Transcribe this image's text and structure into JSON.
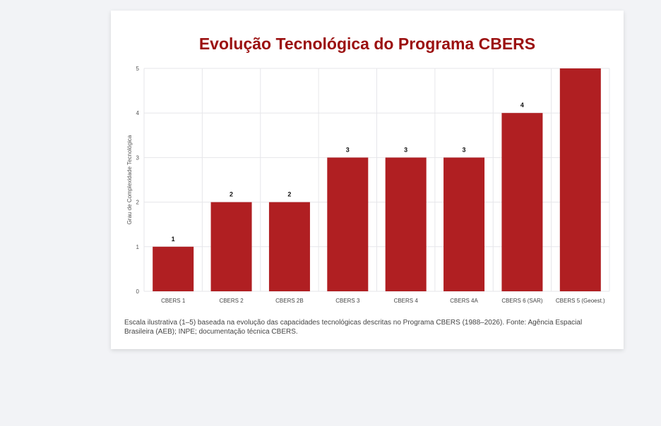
{
  "title": "Evolução Tecnológica do Programa CBERS",
  "caption": "Escala ilustrativa (1–5) baseada na evolução das capacidades tecnológicas descritas no Programa CBERS (1988–2026). Fonte: Agência Espacial Brasileira (AEB); INPE; documentação técnica CBERS.",
  "colors": {
    "bar": "#b01f22",
    "title": "#9b1010",
    "grid": "#e6e6ea"
  },
  "chart_data": {
    "type": "bar",
    "title": "Evolução Tecnológica do Programa CBERS",
    "xlabel": "",
    "ylabel": "Grau de Complexidade Tecnológica",
    "categories": [
      "CBERS 1",
      "CBERS 2",
      "CBERS 2B",
      "CBERS 3",
      "CBERS 4",
      "CBERS 4A",
      "CBERS 6 (SAR)",
      "CBERS 5 (Geoest.)"
    ],
    "values": [
      1,
      2,
      2,
      3,
      3,
      3,
      4,
      5
    ],
    "data_labels": [
      "1",
      "2",
      "2",
      "3",
      "3",
      "3",
      "4",
      ""
    ],
    "ylim": [
      0,
      5
    ],
    "yticks": [
      "0",
      "1",
      "2",
      "3",
      "4",
      "5"
    ],
    "grid": true,
    "legend": "none"
  }
}
